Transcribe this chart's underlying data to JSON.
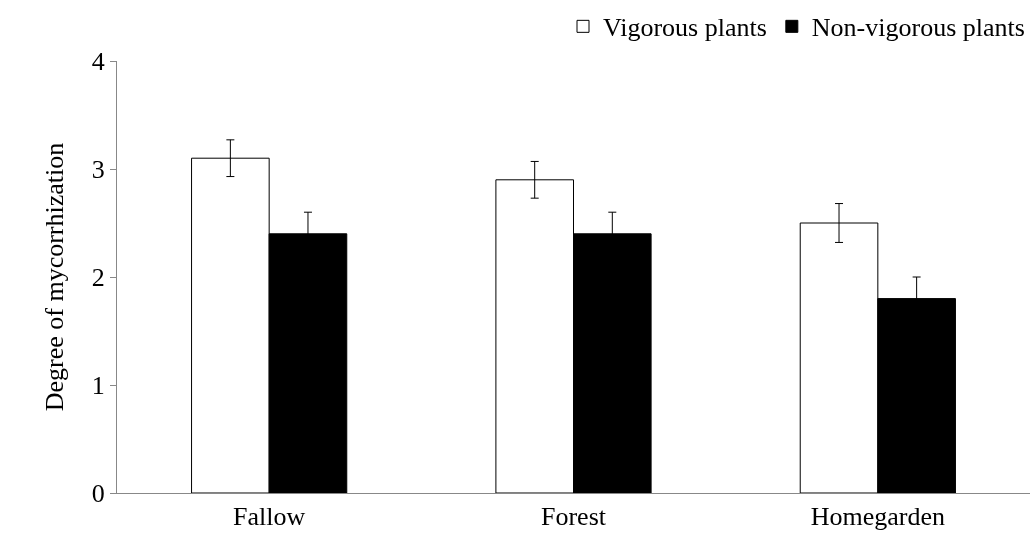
{
  "chart_data": {
    "type": "bar",
    "ylabel": "Degree of mycorrhization",
    "categories": [
      "Fallow",
      "Forest",
      "Homegarden"
    ],
    "series": [
      {
        "name": "Vigorous plants",
        "color": "#ffffff",
        "values": [
          3.1,
          2.9,
          2.5
        ],
        "errors": [
          0.17,
          0.17,
          0.18
        ]
      },
      {
        "name": "Non-vigorous plants",
        "color": "#000000",
        "values": [
          2.4,
          2.4,
          1.8
        ],
        "errors": [
          0.2,
          0.2,
          0.2
        ]
      }
    ],
    "ylim": [
      0,
      4
    ],
    "yticks": [
      0,
      1,
      2,
      3,
      4
    ],
    "grid": false,
    "legend": "top right"
  }
}
